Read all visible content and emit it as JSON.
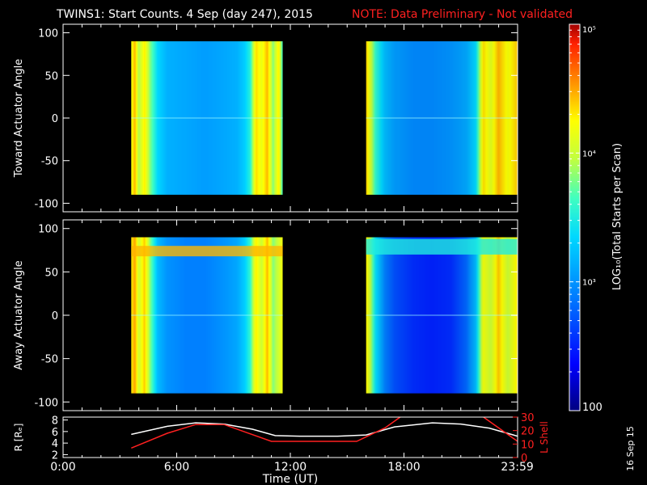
{
  "header": {
    "title": "TWINS1: Start Counts.  4 Sep (day 247), 2015",
    "note": "NOTE: Data Preliminary - Not validated"
  },
  "colors": {
    "background": "#000000",
    "axes": "#ffffff",
    "note": "#ff2020",
    "l_shell_line": "#ff2020",
    "r_line": "#ffffff"
  },
  "colorbar": {
    "label": "LOG₁₀(Total Starts per Scan)",
    "min": 100,
    "max": 100000,
    "scale": "log",
    "tick_labels": [
      "10⁵",
      "10⁴",
      "10³",
      "100"
    ],
    "tick_values": [
      100000,
      10000,
      1000,
      100
    ]
  },
  "footer": {
    "date_stamp": "16 Sep 15"
  },
  "chart_data": [
    {
      "type": "heatmap",
      "ylabel": "Toward Actuator Angle",
      "xlim_hours": [
        0,
        24
      ],
      "ylim": [
        -110,
        110
      ],
      "yticks": [
        100,
        50,
        0,
        -50,
        -100
      ],
      "scale": "log",
      "data_blocks": [
        {
          "t_start": 3.6,
          "t_end": 11.6,
          "angle_min": -90,
          "angle_max": 90,
          "profile": [
            {
              "t": 3.6,
              "log": 4.2
            },
            {
              "t": 3.8,
              "log": 4.45
            },
            {
              "t": 4.0,
              "log": 3.9
            },
            {
              "t": 4.3,
              "log": 4.3
            },
            {
              "t": 4.6,
              "log": 3.8
            },
            {
              "t": 5.0,
              "log": 3.35
            },
            {
              "t": 5.5,
              "log": 3.15
            },
            {
              "t": 6.5,
              "log": 3.1
            },
            {
              "t": 7.5,
              "log": 3.05
            },
            {
              "t": 8.5,
              "log": 3.1
            },
            {
              "t": 9.2,
              "log": 3.15
            },
            {
              "t": 9.6,
              "log": 3.3
            },
            {
              "t": 9.9,
              "log": 3.55
            },
            {
              "t": 10.2,
              "log": 4.35
            },
            {
              "t": 10.5,
              "log": 4.15
            },
            {
              "t": 10.8,
              "log": 4.45
            },
            {
              "t": 11.1,
              "log": 3.8
            },
            {
              "t": 11.4,
              "log": 4.3
            },
            {
              "t": 11.6,
              "log": 3.6
            }
          ]
        },
        {
          "t_start": 16.0,
          "t_end": 24.0,
          "angle_min": -90,
          "angle_max": 90,
          "profile": [
            {
              "t": 16.0,
              "log": 4.4
            },
            {
              "t": 16.2,
              "log": 4.1
            },
            {
              "t": 16.5,
              "log": 3.6
            },
            {
              "t": 17.0,
              "log": 3.2
            },
            {
              "t": 17.5,
              "log": 3.05
            },
            {
              "t": 18.5,
              "log": 2.95
            },
            {
              "t": 19.5,
              "log": 2.95
            },
            {
              "t": 20.5,
              "log": 3.0
            },
            {
              "t": 21.3,
              "log": 3.1
            },
            {
              "t": 21.8,
              "log": 3.35
            },
            {
              "t": 22.2,
              "log": 4.35
            },
            {
              "t": 22.6,
              "log": 4.1
            },
            {
              "t": 23.0,
              "log": 4.45
            },
            {
              "t": 23.5,
              "log": 4.2
            },
            {
              "t": 24.0,
              "log": 4.4
            }
          ]
        }
      ]
    },
    {
      "type": "heatmap",
      "ylabel": "Away Actuator Angle",
      "xlim_hours": [
        0,
        24
      ],
      "ylim": [
        -110,
        110
      ],
      "yticks": [
        100,
        50,
        0,
        -50,
        -100
      ],
      "scale": "log",
      "data_blocks": [
        {
          "t_start": 3.6,
          "t_end": 11.6,
          "angle_min": -90,
          "angle_max": 90,
          "profile": [
            {
              "t": 3.6,
              "log": 4.3
            },
            {
              "t": 3.8,
              "log": 4.5
            },
            {
              "t": 4.0,
              "log": 4.0
            },
            {
              "t": 4.3,
              "log": 4.4
            },
            {
              "t": 4.6,
              "log": 3.8
            },
            {
              "t": 5.0,
              "log": 3.2
            },
            {
              "t": 5.5,
              "log": 3.0
            },
            {
              "t": 6.5,
              "log": 2.9
            },
            {
              "t": 7.5,
              "log": 2.9
            },
            {
              "t": 8.5,
              "log": 3.0
            },
            {
              "t": 9.2,
              "log": 3.1
            },
            {
              "t": 9.6,
              "log": 3.3
            },
            {
              "t": 9.9,
              "log": 3.6
            },
            {
              "t": 10.2,
              "log": 4.3
            },
            {
              "t": 10.5,
              "log": 4.0
            },
            {
              "t": 10.8,
              "log": 4.45
            },
            {
              "t": 11.1,
              "log": 3.8
            },
            {
              "t": 11.6,
              "log": 4.2
            }
          ],
          "band": {
            "angle_min": 68,
            "angle_max": 80,
            "log": 4.45
          }
        },
        {
          "t_start": 16.0,
          "t_end": 24.0,
          "angle_min": -90,
          "angle_max": 90,
          "profile": [
            {
              "t": 16.0,
              "log": 4.3
            },
            {
              "t": 16.2,
              "log": 4.0
            },
            {
              "t": 16.5,
              "log": 3.4
            },
            {
              "t": 17.0,
              "log": 2.9
            },
            {
              "t": 17.5,
              "log": 2.7
            },
            {
              "t": 18.5,
              "log": 2.55
            },
            {
              "t": 19.5,
              "log": 2.5
            },
            {
              "t": 20.5,
              "log": 2.55
            },
            {
              "t": 21.3,
              "log": 2.8
            },
            {
              "t": 21.8,
              "log": 3.2
            },
            {
              "t": 22.2,
              "log": 4.2
            },
            {
              "t": 22.6,
              "log": 4.0
            },
            {
              "t": 23.0,
              "log": 4.4
            },
            {
              "t": 23.5,
              "log": 4.0
            },
            {
              "t": 24.0,
              "log": 4.3
            }
          ],
          "band": {
            "angle_min": 70,
            "angle_max": 88,
            "log": 3.5
          }
        }
      ]
    },
    {
      "type": "line",
      "xlabel": "Time (UT)",
      "xlim_hours": [
        0,
        24
      ],
      "x_tick_hours": [
        0,
        6,
        12,
        18,
        23.983
      ],
      "x_tick_labels": [
        "0:00",
        "6:00",
        "12:00",
        "18:00",
        "23:59"
      ],
      "left_axis": {
        "label": "R [Rₑ]",
        "ylim": [
          1.5,
          8.5
        ],
        "ticks": [
          8,
          6,
          4,
          2
        ],
        "tick_labels": [
          "8",
          "6",
          "4",
          "2"
        ]
      },
      "right_axis": {
        "label": "L Shell",
        "ylim": [
          0,
          30
        ],
        "ticks": [
          30,
          20,
          10,
          0
        ],
        "tick_labels": [
          "30",
          "20",
          "10",
          "0"
        ]
      },
      "series": [
        {
          "axis": "left",
          "color": "#ffffff",
          "points": [
            [
              3.6,
              5.5
            ],
            [
              5.5,
              6.9
            ],
            [
              7.0,
              7.5
            ],
            [
              8.5,
              7.3
            ],
            [
              10.0,
              6.4
            ],
            [
              11.2,
              5.3
            ],
            [
              12.5,
              5.2
            ],
            [
              14.5,
              5.2
            ],
            [
              16.0,
              5.4
            ],
            [
              17.5,
              6.8
            ],
            [
              19.5,
              7.5
            ],
            [
              21.0,
              7.3
            ],
            [
              22.5,
              6.6
            ],
            [
              24.0,
              5.2
            ]
          ]
        },
        {
          "axis": "right",
          "color": "#ff2020",
          "points": [
            [
              3.6,
              7
            ],
            [
              5.5,
              18
            ],
            [
              7.0,
              24.5
            ],
            [
              8.5,
              24.5
            ],
            [
              10.0,
              17
            ],
            [
              11.0,
              12
            ],
            [
              15.5,
              12
            ],
            [
              17.0,
              22
            ],
            [
              17.8,
              30
            ]
          ],
          "points_b": [
            [
              22.2,
              30
            ],
            [
              24.0,
              12
            ]
          ]
        }
      ]
    }
  ]
}
